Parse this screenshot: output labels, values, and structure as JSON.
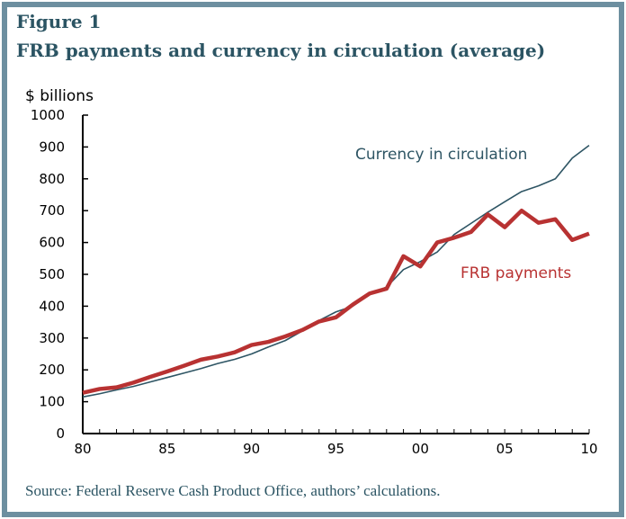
{
  "figure_label": "Figure 1",
  "title": "FRB payments and currency in circulation (average)",
  "source": "Source: Federal Reserve Cash Product Office, authors’ calculations.",
  "chart_data": {
    "type": "line",
    "title": "FRB payments and currency in circulation (average)",
    "ylabel": "$ billions",
    "xlabel": "",
    "ylim": [
      0,
      1000
    ],
    "xlim": [
      1980,
      2010
    ],
    "grid": false,
    "yticks": [
      "0",
      "100",
      "200",
      "300",
      "400",
      "500",
      "600",
      "700",
      "800",
      "900",
      "1000"
    ],
    "xticks": [
      "80",
      "85",
      "90",
      "95",
      "00",
      "05",
      "10"
    ],
    "x": [
      1980,
      1981,
      1982,
      1983,
      1984,
      1985,
      1986,
      1987,
      1988,
      1989,
      1990,
      1991,
      1992,
      1993,
      1994,
      1995,
      1996,
      1997,
      1998,
      1999,
      2000,
      2001,
      2002,
      2003,
      2004,
      2005,
      2006,
      2007,
      2008,
      2009,
      2010
    ],
    "series": [
      {
        "name": "Currency in circulation",
        "color": "#2e5564",
        "values": [
          115,
          125,
          137,
          148,
          162,
          176,
          190,
          204,
          220,
          233,
          250,
          272,
          292,
          322,
          355,
          382,
          400,
          438,
          460,
          515,
          540,
          570,
          625,
          660,
          695,
          728,
          760,
          778,
          800,
          865,
          905
        ]
      },
      {
        "name": "FRB payments",
        "color": "#b83232",
        "values": [
          128,
          140,
          145,
          160,
          178,
          195,
          213,
          232,
          242,
          255,
          278,
          288,
          305,
          325,
          352,
          365,
          405,
          440,
          455,
          557,
          525,
          600,
          615,
          633,
          688,
          648,
          700,
          662,
          673,
          608,
          628
        ]
      }
    ],
    "legend": "inline labels"
  }
}
